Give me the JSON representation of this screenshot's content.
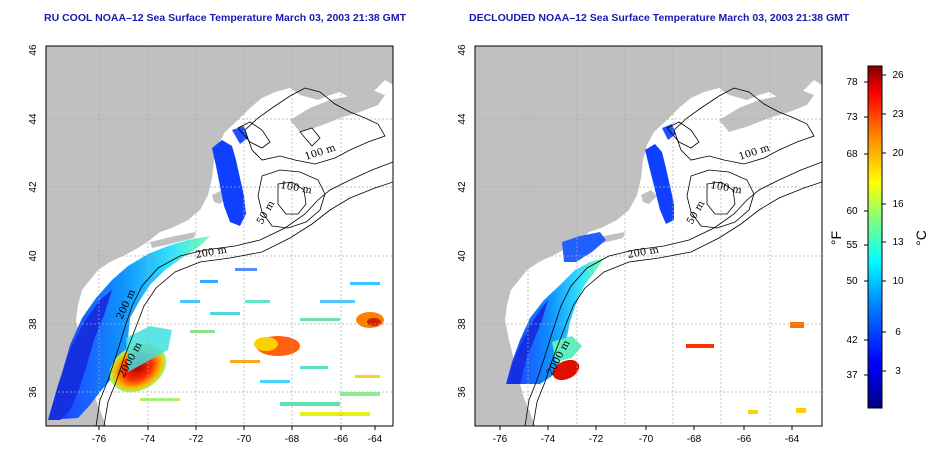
{
  "panels": [
    {
      "title": "RU COOL NOAA–12 Sea Surface Temperature March 03, 2003 21:38 GMT",
      "x_ticks": [
        "-76",
        "-74",
        "-72",
        "-70",
        "-68",
        "-66",
        "-64"
      ],
      "y_ticks": [
        "36",
        "38",
        "40",
        "42",
        "44",
        "46"
      ],
      "contour_labels": [
        "100 m",
        "100 m",
        "50 m",
        "200 m",
        "200 m",
        "2000 m"
      ]
    },
    {
      "title": "DECLOUDED NOAA–12 Sea Surface Temperature March 03, 2003 21:38 GMT",
      "x_ticks": [
        "-76",
        "-74",
        "-72",
        "-70",
        "-68",
        "-66",
        "-64"
      ],
      "y_ticks": [
        "36",
        "38",
        "40",
        "42",
        "44",
        "46"
      ],
      "contour_labels": [
        "100 m",
        "100 m",
        "50 m",
        "200 m",
        "2000 m"
      ]
    }
  ],
  "colorbar": {
    "fahrenheit_label": "°F",
    "celsius_label": "°C",
    "fahrenheit_ticks": [
      "78",
      "73",
      "68",
      "60",
      "55",
      "50",
      "42",
      "37"
    ],
    "celsius_ticks": [
      "26",
      "23",
      "20",
      "16",
      "13",
      "10",
      "6",
      "3"
    ],
    "colors": [
      "#00007f",
      "#0000ff",
      "#0080ff",
      "#00ffff",
      "#80ff80",
      "#ffff00",
      "#ff8000",
      "#ff0000",
      "#7f0000"
    ]
  },
  "colors": {
    "land": "#c0c0c0",
    "title": "#1a1ab0",
    "grid": "#aaaaaa"
  }
}
